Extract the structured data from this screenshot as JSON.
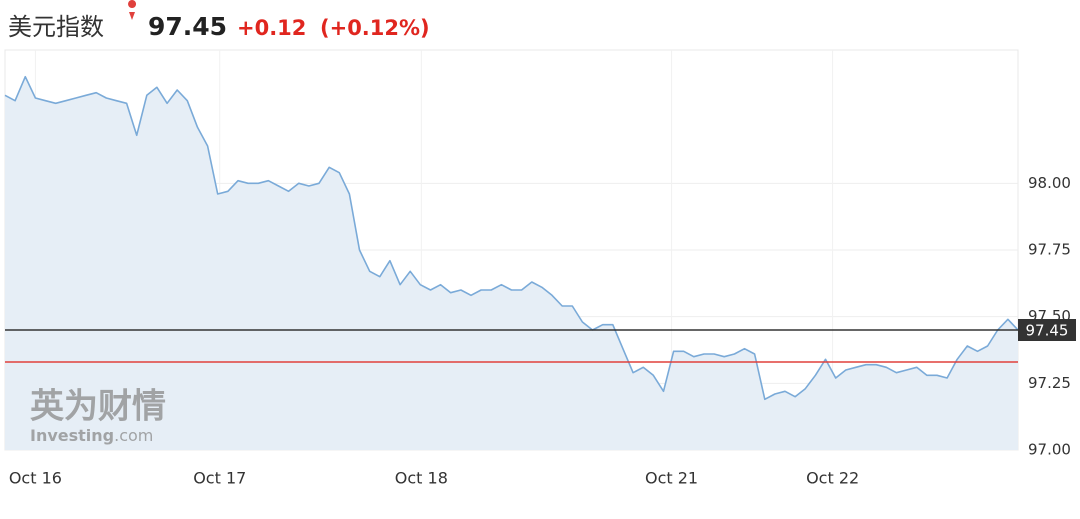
{
  "header": {
    "name": "美元指数",
    "price": "97.45",
    "change": "+0.12",
    "change_pct": "(+0.12%)"
  },
  "watermark": {
    "cn": "英为财情",
    "en": "Investing",
    "suffix": ".com"
  },
  "chart_data": {
    "type": "area",
    "x": [
      0,
      1,
      2,
      3,
      4,
      5,
      6,
      7,
      8,
      9,
      10,
      11,
      12,
      13,
      14,
      15,
      16,
      17,
      18,
      19,
      20,
      21,
      22,
      23,
      24,
      25,
      26,
      27,
      28,
      29,
      30,
      31,
      32,
      33,
      34,
      35,
      36,
      37,
      38,
      39,
      40,
      41,
      42,
      43,
      44,
      45,
      46,
      47,
      48,
      49,
      50,
      51,
      52,
      53,
      54,
      55,
      56,
      57,
      58,
      59,
      60,
      61,
      62,
      63,
      64,
      65,
      66,
      67,
      68,
      69,
      70,
      71,
      72,
      73,
      74,
      75,
      76,
      77,
      78,
      79,
      80,
      81,
      82,
      83,
      84,
      85,
      86,
      87,
      88,
      89,
      90,
      91,
      92,
      93,
      94,
      95,
      96,
      97,
      98,
      99,
      100
    ],
    "series": [
      {
        "color": "#7aaad8",
        "values": [
          98.33,
          98.31,
          98.4,
          98.32,
          98.31,
          98.3,
          98.31,
          98.32,
          98.33,
          98.34,
          98.32,
          98.31,
          98.3,
          98.18,
          98.33,
          98.36,
          98.3,
          98.35,
          98.31,
          98.21,
          98.14,
          97.96,
          97.97,
          98.01,
          98.0,
          98.0,
          98.01,
          97.99,
          97.97,
          98.0,
          97.99,
          98.0,
          98.06,
          98.04,
          97.96,
          97.75,
          97.67,
          97.65,
          97.71,
          97.62,
          97.67,
          97.62,
          97.6,
          97.62,
          97.59,
          97.6,
          97.58,
          97.6,
          97.6,
          97.62,
          97.6,
          97.6,
          97.63,
          97.61,
          97.58,
          97.54,
          97.54,
          97.48,
          97.45,
          97.47,
          97.47,
          97.38,
          97.29,
          97.31,
          97.28,
          97.22,
          97.37,
          97.37,
          97.35,
          97.36,
          97.36,
          97.35,
          97.36,
          97.38,
          97.36,
          97.19,
          97.21,
          97.22,
          97.2,
          97.23,
          97.28,
          97.34,
          97.27,
          97.3,
          97.31,
          97.32,
          97.32,
          97.31,
          97.29,
          97.3,
          97.31,
          97.28,
          97.28,
          97.27,
          97.34,
          97.39,
          97.37,
          97.39,
          97.45,
          97.49,
          97.45
        ]
      }
    ],
    "xlim": [
      0,
      100
    ],
    "xticks": [
      {
        "value": 3,
        "label": "Oct 16"
      },
      {
        "value": 21.2,
        "label": "Oct 17"
      },
      {
        "value": 41.1,
        "label": "Oct 18"
      },
      {
        "value": 65.8,
        "label": "Oct 21"
      },
      {
        "value": 81.7,
        "label": "Oct 22"
      }
    ],
    "ylim": [
      97,
      98.5
    ],
    "yticks": [
      {
        "value": 97,
        "label": "97.00"
      },
      97.25,
      {
        "value": 97.5,
        "label": "97.50"
      },
      97.75,
      {
        "value": 98,
        "label": "98.00"
      }
    ],
    "grid": true,
    "fill": "#e6eef6",
    "reference_lines": [
      {
        "value": 97.45,
        "color": "#333333"
      },
      {
        "value": 97.33,
        "color": "#e0403c"
      }
    ]
  }
}
